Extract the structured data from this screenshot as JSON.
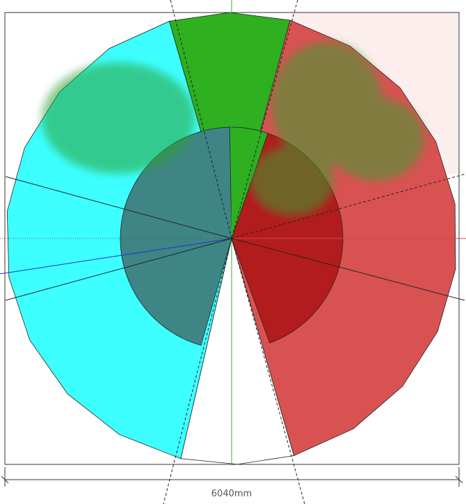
{
  "dimension": {
    "label": "6040mm"
  }
}
